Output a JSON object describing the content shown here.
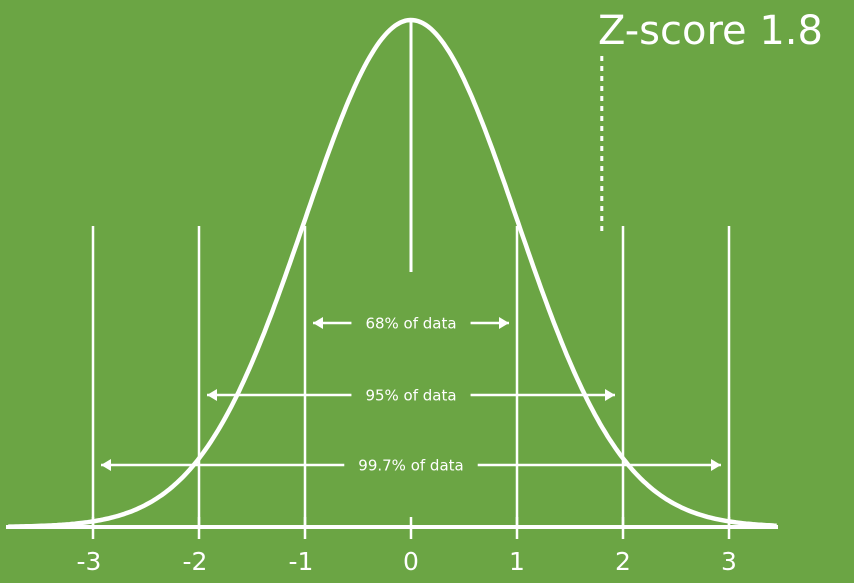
{
  "colors": {
    "background": "#6ba544",
    "foreground": "#ffffff"
  },
  "annotation": {
    "z_score_label": "Z-score 1.8",
    "z_score_value": 1.8
  },
  "axis": {
    "ticks": [
      {
        "value": -3,
        "label": "-3"
      },
      {
        "value": -2,
        "label": "-2"
      },
      {
        "value": -1,
        "label": "-1"
      },
      {
        "value": 0,
        "label": "0"
      },
      {
        "value": 1,
        "label": "1"
      },
      {
        "value": 2,
        "label": "2"
      },
      {
        "value": 3,
        "label": "3"
      }
    ],
    "range": [
      -3.8,
      3.45
    ]
  },
  "ranges": [
    {
      "from": -1,
      "to": 1,
      "label": "68% of data"
    },
    {
      "from": -2,
      "to": 2,
      "label": "95% of data"
    },
    {
      "from": -3,
      "to": 3,
      "label": "99.7% of data"
    }
  ],
  "chart_data": {
    "type": "line",
    "curve": "standard normal distribution",
    "mean": 0,
    "std_dev": 1,
    "x": [
      -3,
      -2,
      -1,
      0,
      1,
      2,
      3
    ],
    "xlim": [
      -3.8,
      3.45
    ],
    "grid": false
  }
}
